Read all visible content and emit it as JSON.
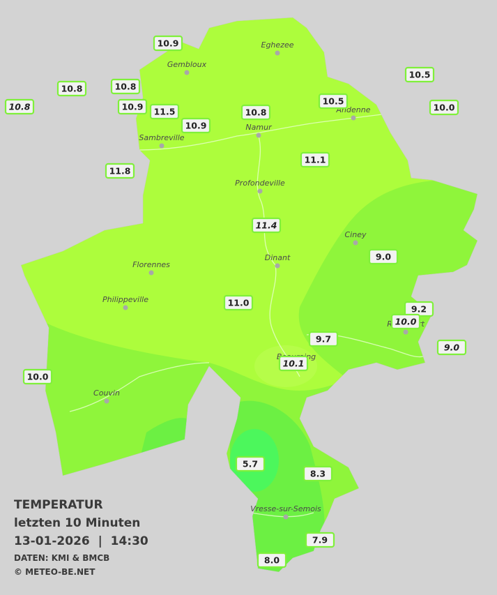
{
  "stations": [
    "10.9",
    "10.8",
    "10.8",
    "10.8",
    "10.9",
    "11.5",
    "10.9",
    "10.8",
    "10.5",
    "10.5",
    "10.0",
    "11.8",
    "11.1",
    "11.4",
    "9.0",
    "11.0",
    "9.2",
    "10.0",
    "9.7",
    "9.0",
    "10.1",
    "10.0",
    "5.7",
    "8.3",
    "7.9",
    "8.0"
  ],
  "cities": [
    "Eghezee",
    "Gembloux",
    "Andenne",
    "Namur",
    "Sambreville",
    "Profondeville",
    "Ciney",
    "Dinant",
    "Florennes",
    "Philippeville",
    "Rochefort",
    "Beauraing",
    "Couvin",
    "Vresse-sur-Semois"
  ],
  "legend": {
    "title": "TEMPERATUR",
    "period": "letzten 10 Minuten",
    "datetime": "13-01-2026  |  14:30",
    "source": "DATEN: KMI & BMCB",
    "copyright": "© METEO-BE.NET"
  }
}
